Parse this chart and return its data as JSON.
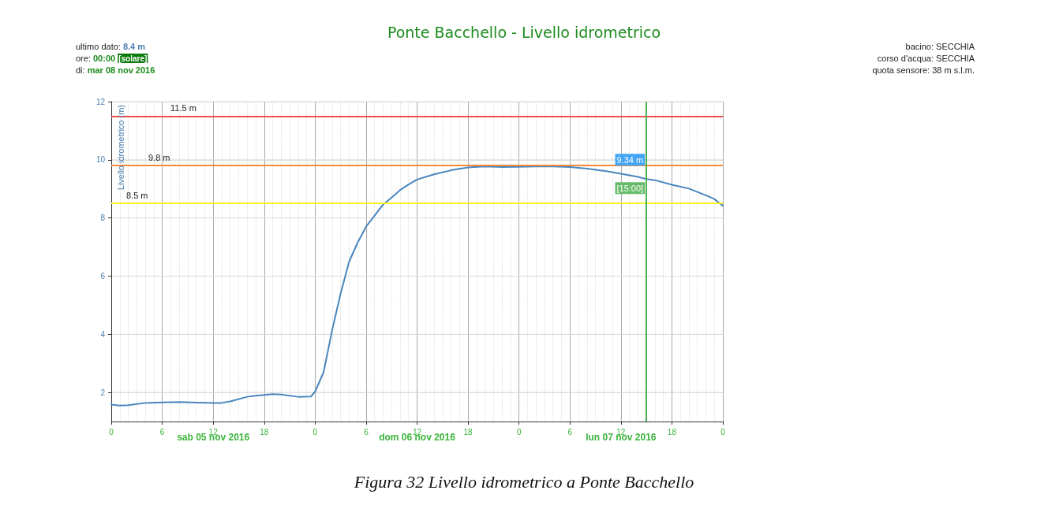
{
  "chart_data": {
    "type": "line",
    "title": "Ponte Bacchello - Livello idrometrico",
    "ylabel": "Livello idrometrico (m)",
    "x": [
      "2016-11-05T00:00",
      "2016-11-05T01:00",
      "2016-11-05T02:00",
      "2016-11-05T04:00",
      "2016-11-05T06:00",
      "2016-11-05T08:00",
      "2016-11-05T10:00",
      "2016-11-05T12:00",
      "2016-11-05T13:00",
      "2016-11-05T14:00",
      "2016-11-05T16:00",
      "2016-11-05T17:00",
      "2016-11-05T19:00",
      "2016-11-05T20:00",
      "2016-11-05T22:00",
      "2016-11-05T23:30",
      "2016-11-06T00:00",
      "2016-11-06T01:00",
      "2016-11-06T02:00",
      "2016-11-06T03:00",
      "2016-11-06T04:00",
      "2016-11-06T05:00",
      "2016-11-06T06:00",
      "2016-11-06T08:00",
      "2016-11-06T09:00",
      "2016-11-06T10:00",
      "2016-11-06T11:00",
      "2016-11-06T12:00",
      "2016-11-06T14:00",
      "2016-11-06T16:00",
      "2016-11-06T18:00",
      "2016-11-06T20:00",
      "2016-11-06T22:00",
      "2016-11-07T00:00",
      "2016-11-07T02:00",
      "2016-11-07T04:00",
      "2016-11-07T06:00",
      "2016-11-07T08:00",
      "2016-11-07T10:00",
      "2016-11-07T12:00",
      "2016-11-07T14:00",
      "2016-11-07T15:00",
      "2016-11-07T16:00",
      "2016-11-07T18:00",
      "2016-11-07T20:00",
      "2016-11-07T22:00",
      "2016-11-07T23:00",
      "2016-11-08T00:00"
    ],
    "series": [
      {
        "color": "#4a86be",
        "values": [
          1.58,
          1.55,
          1.56,
          1.64,
          1.66,
          1.67,
          1.65,
          1.64,
          1.64,
          1.69,
          1.85,
          1.89,
          1.94,
          1.93,
          1.85,
          1.86,
          2.03,
          2.7,
          4.14,
          5.4,
          6.5,
          7.15,
          7.7,
          8.46,
          8.7,
          8.96,
          9.15,
          9.32,
          9.5,
          9.64,
          9.74,
          9.77,
          9.75,
          9.76,
          9.77,
          9.77,
          9.75,
          9.7,
          9.62,
          9.52,
          9.41,
          9.34,
          9.3,
          9.14,
          9.01,
          8.78,
          8.65,
          8.42
        ]
      }
    ],
    "xlim": [
      "2016-11-05T00:00",
      "2016-11-08T00:00"
    ],
    "xticks": [
      {
        "value": "2016-11-05T00:00",
        "label": "0"
      },
      {
        "value": "2016-11-05T06:00",
        "label": "6"
      },
      {
        "value": "2016-11-05T12:00",
        "label": "12"
      },
      {
        "value": "2016-11-05T18:00",
        "label": "18"
      },
      {
        "value": "2016-11-06T00:00",
        "label": "0"
      },
      {
        "value": "2016-11-06T06:00",
        "label": "6"
      },
      {
        "value": "2016-11-06T12:00",
        "label": "12"
      },
      {
        "value": "2016-11-06T18:00",
        "label": "18"
      },
      {
        "value": "2016-11-07T00:00",
        "label": "0"
      },
      {
        "value": "2016-11-07T06:00",
        "label": "6"
      },
      {
        "value": "2016-11-07T12:00",
        "label": "12"
      },
      {
        "value": "2016-11-07T18:00",
        "label": "18"
      },
      {
        "value": "2016-11-08T00:00",
        "label": "0"
      }
    ],
    "ylim": [
      1,
      12
    ],
    "yticks": [
      2,
      4,
      6,
      8,
      10,
      12
    ],
    "grid": true,
    "marker": "none",
    "line_style": "solid",
    "ref_lines": [
      {
        "axis": "y",
        "value": 11.5,
        "label": "11.5 m",
        "color": "#f0504a"
      },
      {
        "axis": "y",
        "value": 9.8,
        "label": "9.8 m",
        "color": "#f5893a"
      },
      {
        "axis": "y",
        "value": 8.5,
        "label": "8.5 m",
        "color": "#f5f52a"
      },
      {
        "axis": "x",
        "value": "2016-11-07T15:00",
        "label": null,
        "color": "#4caf50"
      }
    ],
    "annotations": [
      "ultimo dato: 8.4 m",
      "ore: 00:00 [solare]",
      "di: mar 08 nov 2016",
      "bacino: SECCHIA",
      "corso d'acqua: SECCHIA",
      "quota sensore: 38 m s.l.m.",
      "sab 05 nov 2016",
      "dom 06 nov 2016",
      "lun 07 nov 2016",
      {
        "text": "9.34 m",
        "x": "2016-11-07T15:00",
        "y": 9.34
      },
      {
        "text": "[15:00]",
        "x": "2016-11-07T15:00",
        "y": 9.34
      },
      "Figura 32 Livello idrometrico a Ponte Bacchello"
    ]
  }
}
